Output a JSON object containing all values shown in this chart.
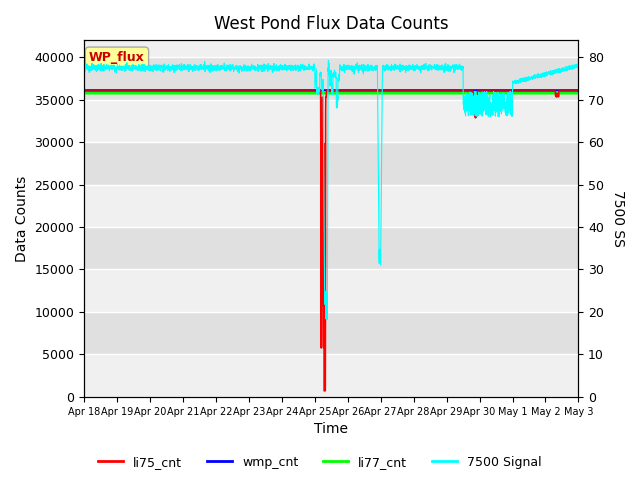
{
  "title": "West Pond Flux Data Counts",
  "xlabel": "Time",
  "ylabel_left": "Data Counts",
  "ylabel_right": "7500 SS",
  "annotation": "WP_flux",
  "ylim_left": [
    0,
    42000
  ],
  "ylim_right": [
    0,
    84
  ],
  "yticks_left": [
    0,
    5000,
    10000,
    15000,
    20000,
    25000,
    30000,
    35000,
    40000
  ],
  "yticks_right": [
    0,
    10,
    20,
    30,
    40,
    50,
    60,
    70,
    80
  ],
  "x_tick_labels": [
    "Apr 18",
    "Apr 19",
    "Apr 20",
    "Apr 21",
    "Apr 22",
    "Apr 23",
    "Apr 24",
    "Apr 25",
    "Apr 26",
    "Apr 27",
    "Apr 28",
    "Apr 29",
    "Apr 30",
    "May 1",
    "May 2",
    "May 3"
  ],
  "li77_cnt_value": 35800,
  "li77_color": "#00FF00",
  "li75_color": "#FF0000",
  "wmp_color": "#0000FF",
  "signal_color": "#00FFFF",
  "plot_bg_light": "#F0F0F0",
  "plot_bg_dark": "#E0E0E0",
  "legend_labels": [
    "li75_cnt",
    "wmp_cnt",
    "li77_cnt",
    "7500 Signal"
  ],
  "signal_base": 77.5,
  "signal_noise": 0.4
}
